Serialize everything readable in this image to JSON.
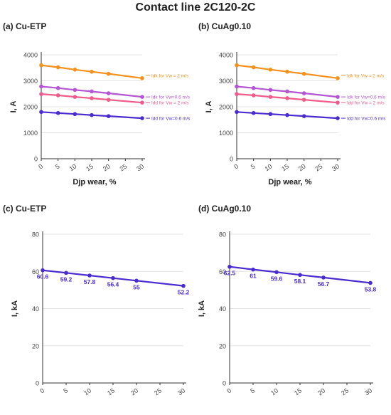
{
  "figure": {
    "title": "Contact line 2C120-2C"
  },
  "colors": {
    "orange": "#f5921e",
    "violet": "#b455d4",
    "pink": "#ef5b8a",
    "blue": "#4a2bd0",
    "axis": "#333333",
    "grid": "#e3e3e3",
    "text": "#222222"
  },
  "chart_data": [
    {
      "label": "(a) Cu-ETP",
      "type": "line",
      "xlabel": "Djp wear, %",
      "ylabel": "I, A",
      "xticks": [
        0,
        5,
        10,
        15,
        20,
        25,
        30
      ],
      "yticks": [
        0,
        1000,
        2000,
        3000,
        4000
      ],
      "xlim": [
        0,
        30
      ],
      "ylim": [
        0,
        4000
      ],
      "grid": "horizontal",
      "series": [
        {
          "name": "Idk for Vw = 2 m/s",
          "color": "#f5921e",
          "x": [
            0,
            5,
            10,
            15,
            20,
            30
          ],
          "y": [
            3600,
            3520,
            3430,
            3350,
            3270,
            3100
          ]
        },
        {
          "name": "Idk for Vw=0.6 m/s",
          "color": "#b455d4",
          "x": [
            0,
            5,
            10,
            15,
            20,
            30
          ],
          "y": [
            2780,
            2720,
            2650,
            2590,
            2520,
            2380
          ]
        },
        {
          "name": "Idd for Vw = 2 m/s",
          "color": "#ef5b8a",
          "x": [
            0,
            5,
            10,
            15,
            20,
            30
          ],
          "y": [
            2490,
            2440,
            2380,
            2330,
            2270,
            2160
          ]
        },
        {
          "name": "Idd for Vw=0.6 m/s",
          "color": "#4a2bd0",
          "x": [
            0,
            5,
            10,
            15,
            20,
            30
          ],
          "y": [
            1800,
            1760,
            1720,
            1680,
            1640,
            1560
          ]
        }
      ]
    },
    {
      "label": "(b) CuAg0.10",
      "type": "line",
      "xlabel": "Djp wear, %",
      "ylabel": "I, A",
      "xticks": [
        0,
        5,
        10,
        15,
        20,
        25,
        30
      ],
      "yticks": [
        0,
        1000,
        2000,
        3000,
        4000
      ],
      "xlim": [
        0,
        30
      ],
      "ylim": [
        0,
        4000
      ],
      "grid": "horizontal",
      "series": [
        {
          "name": "Idk for Vw = 2 m/s",
          "color": "#f5921e",
          "x": [
            0,
            5,
            10,
            15,
            20,
            30
          ],
          "y": [
            3600,
            3520,
            3430,
            3350,
            3270,
            3100
          ]
        },
        {
          "name": "Idk for Vw=0.6 m/s",
          "color": "#b455d4",
          "x": [
            0,
            5,
            10,
            15,
            20,
            30
          ],
          "y": [
            2780,
            2720,
            2650,
            2590,
            2520,
            2380
          ]
        },
        {
          "name": "Idd for Vw = 2 m/s",
          "color": "#ef5b8a",
          "x": [
            0,
            5,
            10,
            15,
            20,
            30
          ],
          "y": [
            2490,
            2440,
            2380,
            2330,
            2270,
            2160
          ]
        },
        {
          "name": "Idd for Vw=0.6 m/s",
          "color": "#4a2bd0",
          "x": [
            0,
            5,
            10,
            15,
            20,
            30
          ],
          "y": [
            1800,
            1760,
            1720,
            1680,
            1640,
            1560
          ]
        }
      ]
    },
    {
      "label": "(c) Cu-ETP",
      "type": "line",
      "xlabel": "Djp wear, %",
      "ylabel": "I, kA",
      "xticks": [
        0,
        5,
        10,
        15,
        20,
        25,
        30
      ],
      "yticks": [
        0,
        20,
        40,
        60,
        80
      ],
      "xlim": [
        0,
        30
      ],
      "ylim": [
        0,
        80
      ],
      "grid": "horizontal",
      "series": [
        {
          "name": "",
          "color": "#4a2bd0",
          "x": [
            0,
            5,
            10,
            15,
            20,
            30
          ],
          "y": [
            60.6,
            59.2,
            57.8,
            56.4,
            55,
            52.2
          ],
          "labels": [
            "60.6",
            "59.2",
            "57.8",
            "56.4",
            "55",
            "52.2"
          ]
        }
      ]
    },
    {
      "label": "(d) CuAg0.10",
      "type": "line",
      "xlabel": "Djp wear, %",
      "ylabel": "I, kA",
      "xticks": [
        0,
        5,
        10,
        15,
        20,
        25,
        30
      ],
      "yticks": [
        0,
        20,
        40,
        60,
        80
      ],
      "xlim": [
        0,
        30
      ],
      "ylim": [
        0,
        80
      ],
      "grid": "horizontal",
      "series": [
        {
          "name": "",
          "color": "#4a2bd0",
          "x": [
            0,
            5,
            10,
            15,
            20,
            30
          ],
          "y": [
            62.5,
            61,
            59.6,
            58.1,
            56.7,
            53.8
          ],
          "labels": [
            "62.5",
            "61",
            "59.6",
            "58.1",
            "56.7",
            "53.8"
          ]
        }
      ]
    }
  ]
}
